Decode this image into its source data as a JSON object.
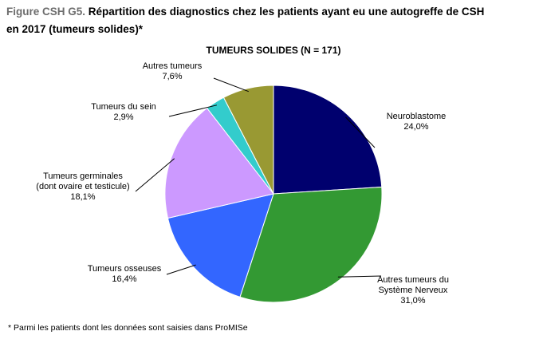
{
  "figure": {
    "prefix": "Figure CSH G5.",
    "title_line1": " Répartition des diagnostics chez les patients ayant eu une autogreffe de CSH",
    "title_line2": "en 2017 (tumeurs solides)*",
    "footnote": "* Parmi les patients dont les données sont saisies dans ProMISe"
  },
  "chart_data": {
    "type": "pie",
    "title": "TUMEURS  SOLIDES (N = 171)",
    "start": "12 o'clock",
    "direction": "clockwise",
    "slices": [
      {
        "label": "Neuroblastome",
        "value": 24.0,
        "value_label": "24,0%",
        "color": "#00006e"
      },
      {
        "label": "Autres tumeurs du Système Nerveux",
        "value": 31.0,
        "value_label": "31,0%",
        "color": "#339933"
      },
      {
        "label": "Tumeurs osseuses",
        "value": 16.4,
        "value_label": "16,4%",
        "color": "#3366ff"
      },
      {
        "label": "Tumeurs germinales (dont ovaire et testicule)",
        "value": 18.1,
        "value_label": "18,1%",
        "color": "#cc99ff"
      },
      {
        "label": "Tumeurs du sein",
        "value": 2.9,
        "value_label": "2,9%",
        "color": "#33cccc"
      },
      {
        "label": "Autres tumeurs",
        "value": 7.6,
        "value_label": "7,6%",
        "color": "#999933"
      }
    ]
  }
}
